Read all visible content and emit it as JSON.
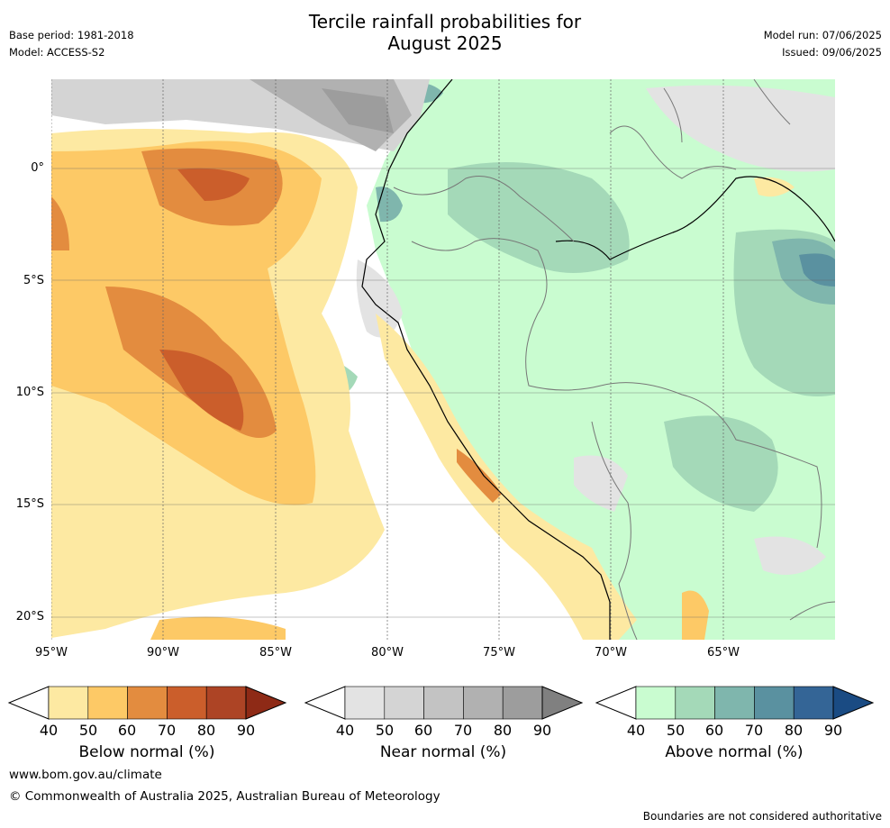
{
  "title_line1": "Tercile rainfall probabilities for",
  "title_line2": "August 2025",
  "meta_left": {
    "base_period": "Base period: 1981-2018",
    "model": "Model: ACCESS-S2"
  },
  "meta_right": {
    "model_run": "Model run: 07/06/2025",
    "issued": "Issued: 09/06/2025"
  },
  "map": {
    "lon_ticks": [
      "95°W",
      "90°W",
      "85°W",
      "80°W",
      "75°W",
      "70°W",
      "65°W"
    ],
    "lat_ticks": [
      "0°",
      "5°S",
      "10°S",
      "15°S",
      "20°S"
    ]
  },
  "colorbars": [
    {
      "label": "Below normal (%)",
      "ticks": [
        "40",
        "50",
        "60",
        "70",
        "80",
        "90"
      ],
      "colors": [
        "#fde9a2",
        "#fdc966",
        "#e38c3f",
        "#cb5e2b",
        "#ad4425",
        "#8e2a16"
      ]
    },
    {
      "label": "Near normal (%)",
      "ticks": [
        "40",
        "50",
        "60",
        "70",
        "80",
        "90"
      ],
      "colors": [
        "#e3e3e3",
        "#d4d4d4",
        "#c3c3c3",
        "#b1b1b1",
        "#9d9d9d",
        "#808080"
      ]
    },
    {
      "label": "Above normal (%)",
      "ticks": [
        "40",
        "50",
        "60",
        "70",
        "80",
        "90"
      ],
      "colors": [
        "#c9fcd0",
        "#a4d9b8",
        "#7fb6ad",
        "#5a91a0",
        "#346596",
        "#1a4b83"
      ]
    }
  ],
  "footer": {
    "url": "www.bom.gov.au/climate",
    "copyright": "© Commonwealth of Australia 2025, Australian Bureau of Meteorology",
    "disclaimer": "Boundaries are not considered authoritative"
  }
}
